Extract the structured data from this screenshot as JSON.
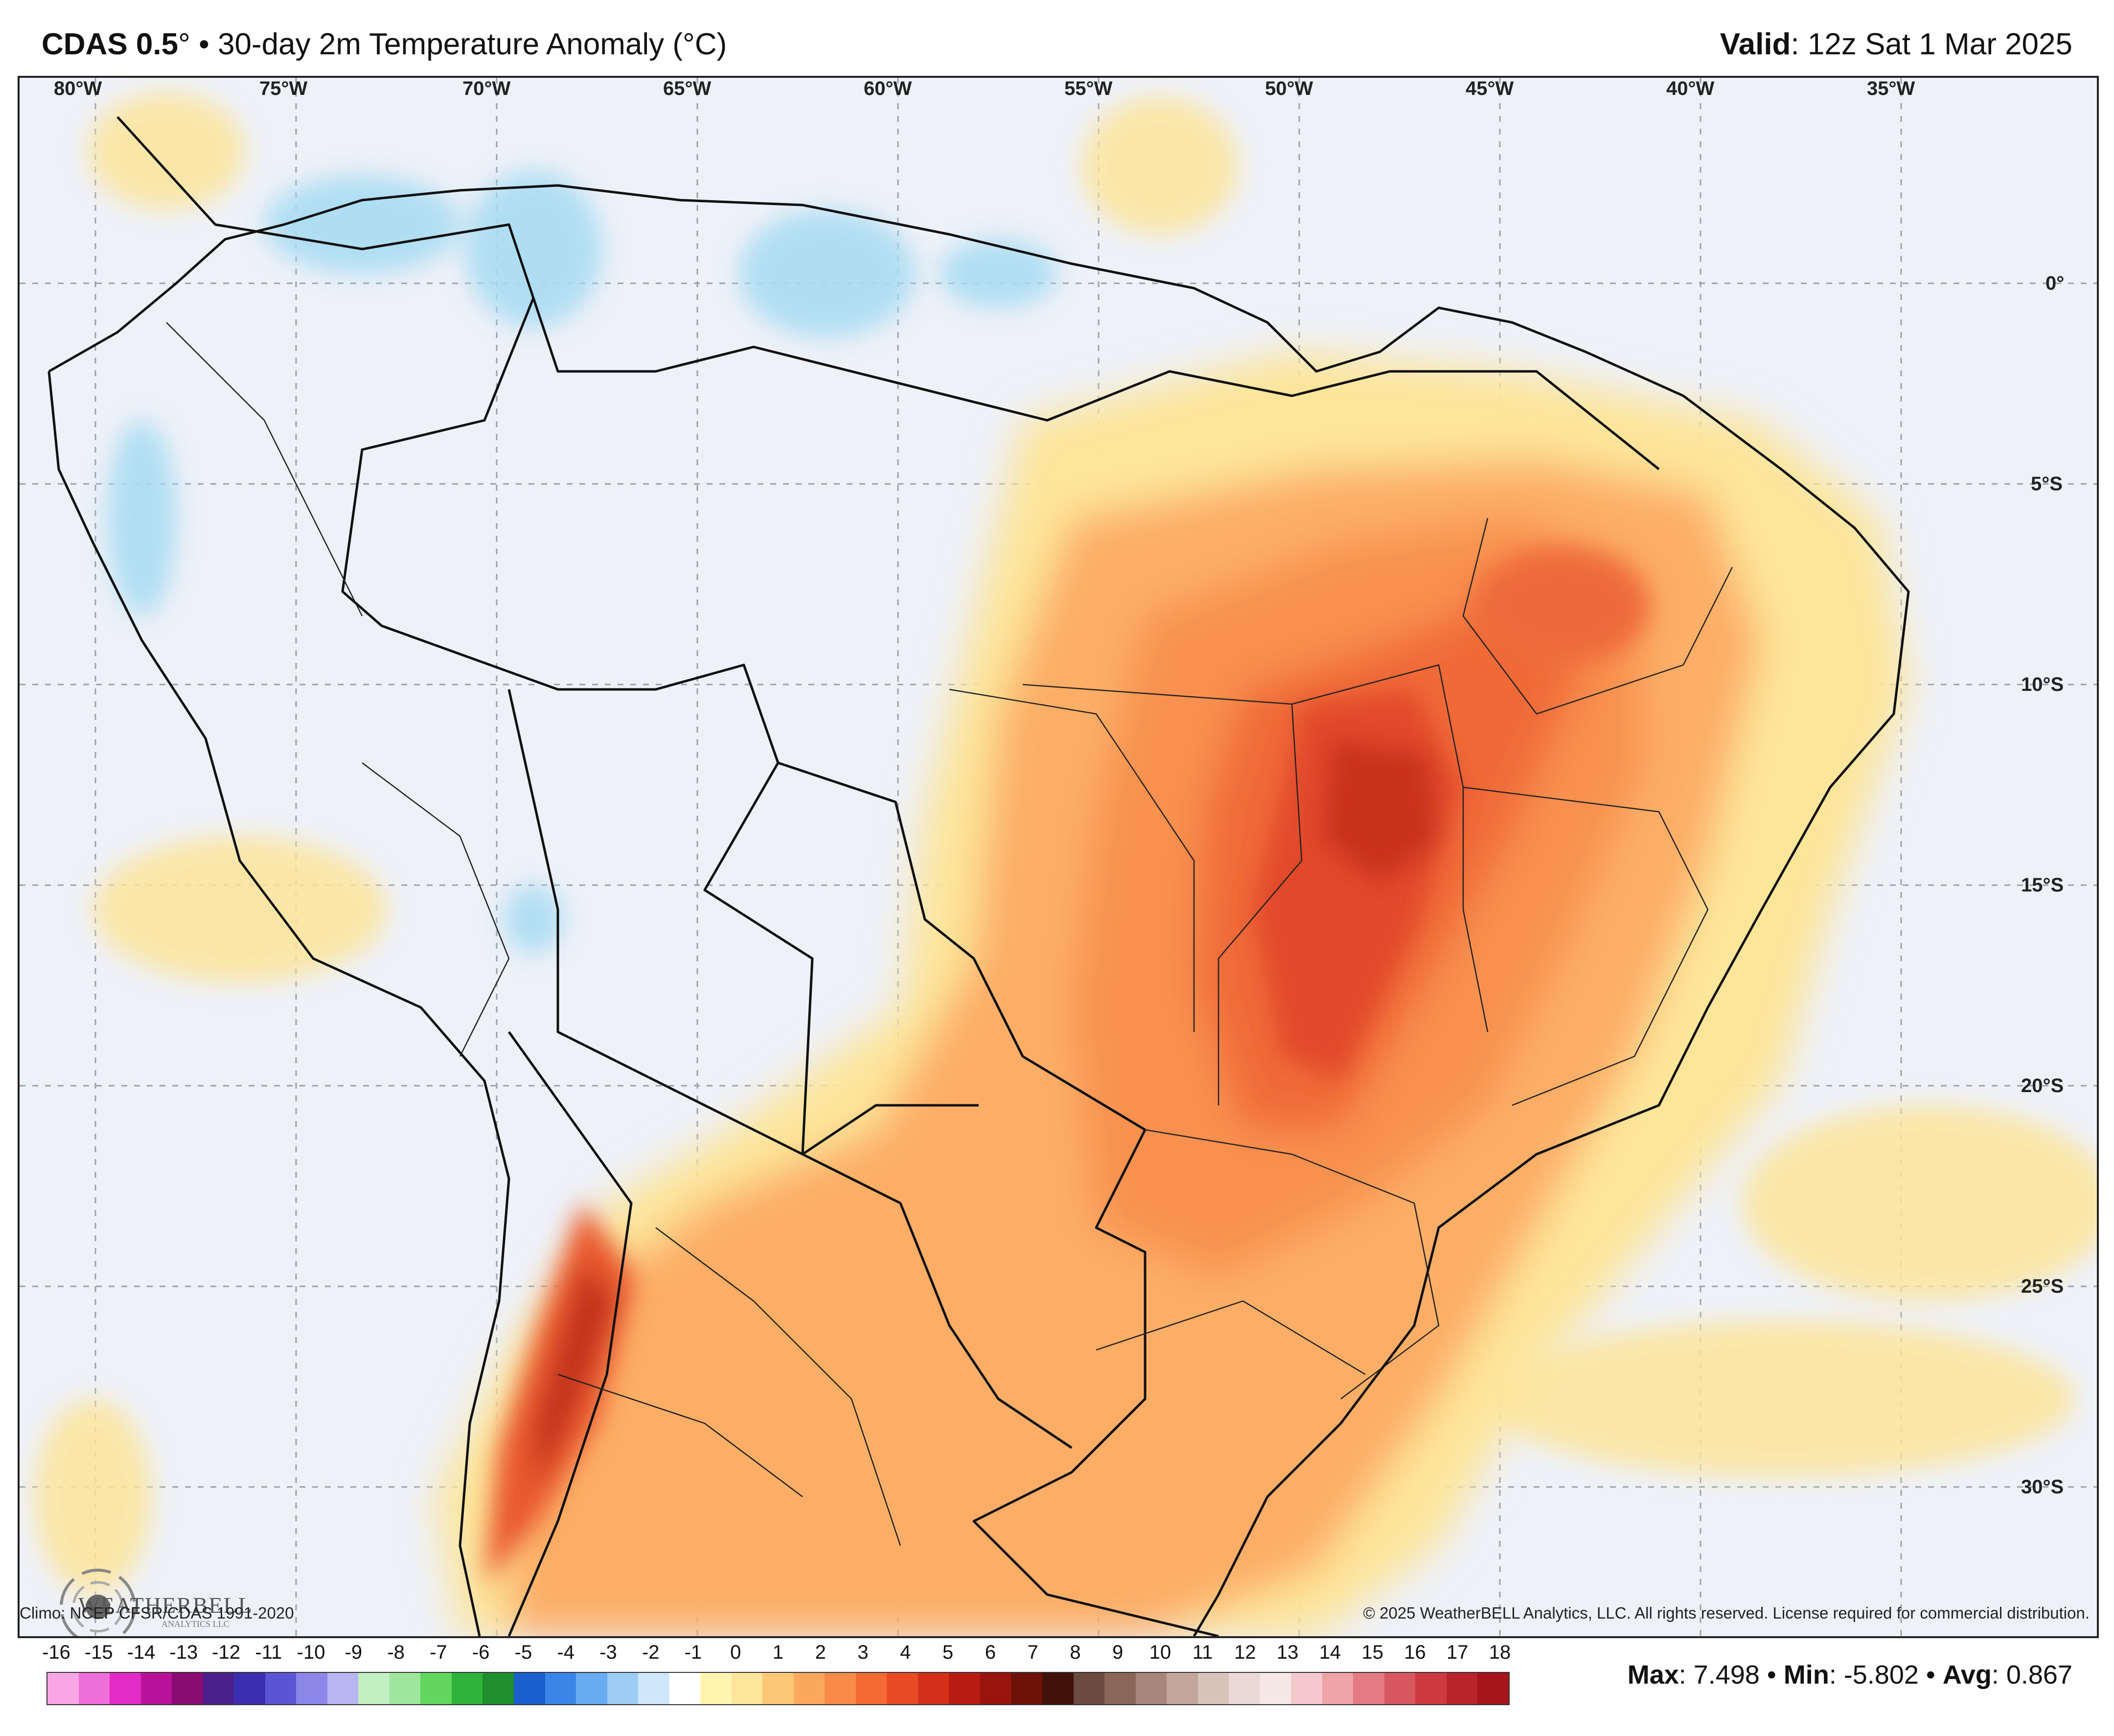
{
  "header": {
    "product": "CDAS 0.5",
    "degree": "°",
    "title_rest": " • 30-day 2m Temperature Anomaly (°C)",
    "valid_label": "Valid",
    "valid_value": ": 12z Sat 1 Mar 2025"
  },
  "map": {
    "longitude_labels": [
      "80°W",
      "75°W",
      "70°W",
      "65°W",
      "60°W",
      "55°W",
      "50°W",
      "45°W",
      "40°W",
      "35°W"
    ],
    "latitude_labels": [
      "0°",
      "5°S",
      "10°S",
      "15°S",
      "20°S",
      "25°S",
      "30°S"
    ],
    "land_color": "#eef1f8",
    "ocean_color": "#eef1f8"
  },
  "logo": {
    "text": "WEATHERBELL",
    "subtext": "ANALYTICS LLC"
  },
  "credits": {
    "climo": "Climo: NCEP CFSR/CDAS 1991-2020",
    "copyright": "© 2025 WeatherBELL Analytics, LLC. All rights reserved. License required for commercial distribution."
  },
  "colorbar": {
    "ticks": [
      "-16",
      "-15",
      "-14",
      "-13",
      "-12",
      "-11",
      "-10",
      "-9",
      "-8",
      "-7",
      "-6",
      "-5",
      "-4",
      "-3",
      "-2",
      "-1",
      "0",
      "1",
      "2",
      "3",
      "4",
      "5",
      "6",
      "7",
      "8",
      "9",
      "10",
      "11",
      "12",
      "13",
      "14",
      "15",
      "16",
      "17",
      "18"
    ],
    "colors": [
      "#f8a6e6",
      "#ef6fd8",
      "#e22bc7",
      "#b8129a",
      "#8a0c73",
      "#4a1f8c",
      "#3a2fb0",
      "#5b55d6",
      "#8a87e8",
      "#b7b5f2",
      "#c3f0c2",
      "#9ee69b",
      "#62d65e",
      "#2fb33a",
      "#1e8f2c",
      "#1b5fcc",
      "#3a86e8",
      "#67abf0",
      "#9dcdf5",
      "#cfe7fb",
      "#ffffff",
      "#fff5b0",
      "#fde59a",
      "#fdc777",
      "#fca85c",
      "#fa8a48",
      "#f46a34",
      "#e84a24",
      "#d42f18",
      "#b81c10",
      "#98140c",
      "#6e1208",
      "#40120a",
      "#6b4a40",
      "#8a6558",
      "#a8857a",
      "#c2a59b",
      "#d8c3bb",
      "#ead9d4",
      "#f6e8e6",
      "#f5c9cc",
      "#eea3a8",
      "#e47b82",
      "#d9585f",
      "#cc3a40",
      "#b8242a",
      "#a5151a"
    ]
  },
  "stats": {
    "max_label": "Max",
    "max_value": ": 7.498 • ",
    "min_label": "Min",
    "min_value": ": -5.802 • ",
    "avg_label": "Avg",
    "avg_value": ": 0.867"
  }
}
